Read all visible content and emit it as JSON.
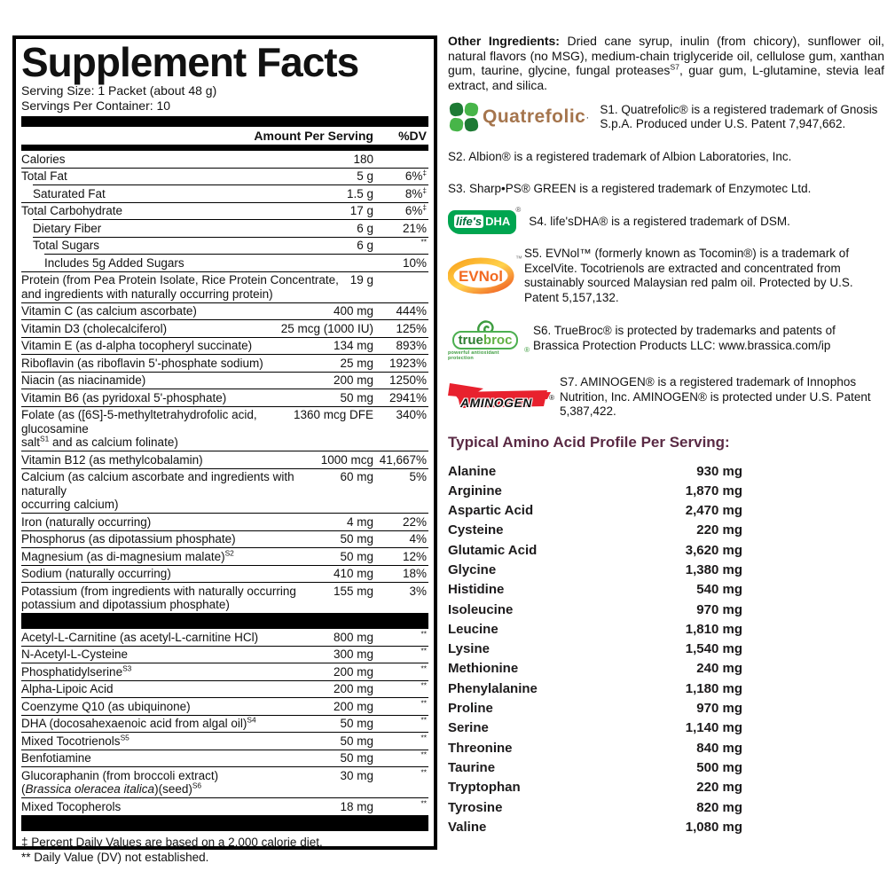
{
  "facts": {
    "title": "Supplement Facts",
    "serving_size": "Serving Size: 1 Packet (about 48 g)",
    "servings": "Servings Per Container: 10",
    "col_amount": "Amount Per Serving",
    "col_dv": "%DV",
    "rows1": [
      {
        "name": [
          {
            "t": "Calories"
          }
        ],
        "amount": "180"
      },
      {
        "name": [
          {
            "t": "Total Fat"
          }
        ],
        "amount": "5 g",
        "dv": "6%",
        "dvsup": "‡"
      },
      {
        "name": [
          {
            "t": "Saturated Fat"
          }
        ],
        "amount": "1.5 g",
        "dv": "8%",
        "dvsup": "‡",
        "indent": 1
      },
      {
        "name": [
          {
            "t": "Total Carbohydrate"
          }
        ],
        "amount": "17 g",
        "dv": "6%",
        "dvsup": "‡"
      },
      {
        "name": [
          {
            "t": "Dietary Fiber"
          }
        ],
        "amount": "6 g",
        "dv": "21%",
        "indent": 1
      },
      {
        "name": [
          {
            "t": "Total Sugars"
          }
        ],
        "amount": "6 g",
        "dvsup": "**",
        "indent": 1
      },
      {
        "name": [
          {
            "t": "Includes 5g Added Sugars"
          }
        ],
        "dv": "10%",
        "indent": 2
      },
      {
        "name": [
          {
            "t": "Protein (from Pea Protein Isolate, Rice Protein Concentrate,"
          }
        ],
        "name2": [
          {
            "t": "and ingredients with naturally occurring protein)"
          }
        ],
        "amount": "19 g"
      },
      {
        "name": [
          {
            "t": "Vitamin C (as calcium ascorbate)"
          }
        ],
        "amount": "400 mg",
        "dv": "444%"
      },
      {
        "name": [
          {
            "t": "Vitamin D3 (cholecalciferol)"
          }
        ],
        "amount": "25 mcg (1000 IU)",
        "dv": "125%"
      },
      {
        "name": [
          {
            "t": "Vitamin E (as d-alpha tocopheryl succinate)"
          }
        ],
        "amount": "134 mg",
        "dv": "893%"
      },
      {
        "name": [
          {
            "t": "Riboflavin (as riboflavin 5'-phosphate sodium)"
          }
        ],
        "amount": "25 mg",
        "dv": "1923%"
      },
      {
        "name": [
          {
            "t": "Niacin (as niacinamide)"
          }
        ],
        "amount": "200 mg",
        "dv": "1250%"
      },
      {
        "name": [
          {
            "t": "Vitamin B6 (as pyridoxal 5'-phosphate)"
          }
        ],
        "amount": "50 mg",
        "dv": "2941%"
      },
      {
        "name": [
          {
            "t": "Folate (as ([6S]-5-methyltetrahydrofolic acid, glucosamine"
          }
        ],
        "name2": [
          {
            "t": "salt"
          },
          {
            "t": "S1",
            "sup": true
          },
          {
            "t": " and as calcium folinate)"
          }
        ],
        "amount": "1360 mcg DFE",
        "dv": "340%"
      },
      {
        "name": [
          {
            "t": "Vitamin B12 (as methylcobalamin)"
          }
        ],
        "amount": "1000 mcg",
        "dv": "41,667%"
      },
      {
        "name": [
          {
            "t": "Calcium (as calcium ascorbate and ingredients with naturally"
          }
        ],
        "name2": [
          {
            "t": "occurring calcium)"
          }
        ],
        "amount": "60 mg",
        "dv": "5%"
      },
      {
        "name": [
          {
            "t": "Iron (naturally occurring)"
          }
        ],
        "amount": "4 mg",
        "dv": "22%"
      },
      {
        "name": [
          {
            "t": "Phosphorus (as dipotassium phosphate)"
          }
        ],
        "amount": "50 mg",
        "dv": "4%"
      },
      {
        "name": [
          {
            "t": "Magnesium (as di-magnesium malate)"
          },
          {
            "t": "S2",
            "sup": true
          }
        ],
        "amount": "50 mg",
        "dv": "12%"
      },
      {
        "name": [
          {
            "t": "Sodium (naturally occurring)"
          }
        ],
        "amount": "410 mg",
        "dv": "18%"
      },
      {
        "name": [
          {
            "t": "Potassium (from ingredients with naturally occurring"
          }
        ],
        "name2": [
          {
            "t": "potassium and dipotassium phosphate)"
          }
        ],
        "amount": "155 mg",
        "dv": "3%"
      }
    ],
    "rows2": [
      {
        "name": [
          {
            "t": "Acetyl-L-Carnitine (as acetyl-L-carnitine HCl)"
          }
        ],
        "amount": "800 mg",
        "dvsup": "**"
      },
      {
        "name": [
          {
            "t": "N-Acetyl-L-Cysteine"
          }
        ],
        "amount": "300 mg",
        "dvsup": "**"
      },
      {
        "name": [
          {
            "t": "Phosphatidylserine"
          },
          {
            "t": "S3",
            "sup": true
          }
        ],
        "amount": "200 mg",
        "dvsup": "**"
      },
      {
        "name": [
          {
            "t": "Alpha-Lipoic Acid"
          }
        ],
        "amount": "200 mg",
        "dvsup": "**"
      },
      {
        "name": [
          {
            "t": "Coenzyme Q10 (as ubiquinone)"
          }
        ],
        "amount": "200 mg",
        "dvsup": "**"
      },
      {
        "name": [
          {
            "t": "DHA (docosahexaenoic acid from algal oil)"
          },
          {
            "t": "S4",
            "sup": true
          }
        ],
        "amount": "50 mg",
        "dvsup": "**"
      },
      {
        "name": [
          {
            "t": "Mixed Tocotrienols"
          },
          {
            "t": "S5",
            "sup": true
          }
        ],
        "amount": "50 mg",
        "dvsup": "**"
      },
      {
        "name": [
          {
            "t": "Benfotiamine"
          }
        ],
        "amount": "50 mg",
        "dvsup": "**"
      },
      {
        "name": [
          {
            "t": "Glucoraphanin (from broccoli extract)"
          }
        ],
        "name2": [
          {
            "t": "("
          },
          {
            "t": "Brassica oleracea italica",
            "italic": true
          },
          {
            "t": ")(seed)"
          },
          {
            "t": "S6",
            "sup": true
          }
        ],
        "amount": "30 mg",
        "dvsup": "**"
      },
      {
        "name": [
          {
            "t": "Mixed Tocopherols"
          }
        ],
        "amount": "18 mg",
        "dvsup": "**"
      }
    ],
    "footnote1": "‡ Percent Daily Values are based on a 2,000 calorie diet.",
    "footnote2": "** Daily Value (DV) not established."
  },
  "right": {
    "other_ingredients": {
      "label": "Other Ingredients:",
      "pre": " Dried cane syrup, inulin (from chicory), sunflower oil, natural flavors (no MSG), medium-chain triglyceride oil, cellulose gum, xanthan gum, taurine, glycine, fungal proteases",
      "sup": "S7",
      "post": ", guar gum, L-glutamine, stevia leaf extract, and silica."
    },
    "logos": {
      "quatrefolic": "Quatrefolic",
      "evnol": "EVNol",
      "evnol_tm": "™",
      "dha_life": "life's",
      "dha_dha": "DHA",
      "dha_reg": "®",
      "tb_true": "true",
      "tb_broc": "broc",
      "tb_tag": "powerful antioxidant protection",
      "tb_reg": "®",
      "aminogen": "AMINOGEN",
      "aminogen_reg": "®"
    },
    "trademarks": {
      "s1": "S1. Quatrefolic® is a registered trademark of Gnosis S.p.A. Produced under U.S. Patent 7,947,662.",
      "s2": "S2. Albion® is a registered trademark of Albion Laboratories, Inc.",
      "s3": "S3. Sharp•PS® GREEN is a registered trademark of Enzymotec Ltd.",
      "s4": "S4. life'sDHA® is a registered trademark of DSM.",
      "s5": "S5. EVNol™ (formerly known as Tocomin®) is a trademark of ExcelVite. Tocotrienols are extracted and concentrated from sustainably sourced Malaysian red palm oil. Protected by U.S. Patent 5,157,132.",
      "s6": "S6. TrueBroc® is protected by trademarks and patents of Brassica Protection Products LLC: www.brassica.com/ip",
      "s7": "S7. AMINOGEN® is a registered trademark of Innophos Nutrition, Inc. AMINOGEN® is protected under U.S. Patent 5,387,422."
    },
    "amino": {
      "heading": "Typical Amino Acid Profile Per Serving:",
      "items": [
        {
          "n": "Alanine",
          "v": "930 mg"
        },
        {
          "n": "Arginine",
          "v": "1,870 mg"
        },
        {
          "n": "Aspartic Acid",
          "v": "2,470 mg"
        },
        {
          "n": "Cysteine",
          "v": "220 mg"
        },
        {
          "n": "Glutamic Acid",
          "v": "3,620 mg"
        },
        {
          "n": "Glycine",
          "v": "1,380 mg"
        },
        {
          "n": "Histidine",
          "v": "540 mg"
        },
        {
          "n": "Isoleucine",
          "v": "970 mg"
        },
        {
          "n": "Leucine",
          "v": "1,810 mg"
        },
        {
          "n": "Lysine",
          "v": "1,540 mg"
        },
        {
          "n": "Methionine",
          "v": "240 mg"
        },
        {
          "n": "Phenylalanine",
          "v": "1,180 mg"
        },
        {
          "n": "Proline",
          "v": "970 mg"
        },
        {
          "n": "Serine",
          "v": "1,140 mg"
        },
        {
          "n": "Threonine",
          "v": "840 mg"
        },
        {
          "n": "Taurine",
          "v": "500 mg"
        },
        {
          "n": "Tryptophan",
          "v": "220 mg"
        },
        {
          "n": "Tyrosine",
          "v": "820 mg"
        },
        {
          "n": "Valine",
          "v": "1,080 mg"
        }
      ]
    },
    "colors": {
      "heading_maroon": "#5a2a44",
      "quatrefolic_brown": "#a5754d",
      "clover_green_light": "#47b549",
      "clover_green_dark": "#1d7a34",
      "evnol_orange": "#f26a21",
      "truebroc_green": "#4caf50",
      "lifesdha_green": "#00a550",
      "aminogen_red": "#e8212e"
    }
  }
}
